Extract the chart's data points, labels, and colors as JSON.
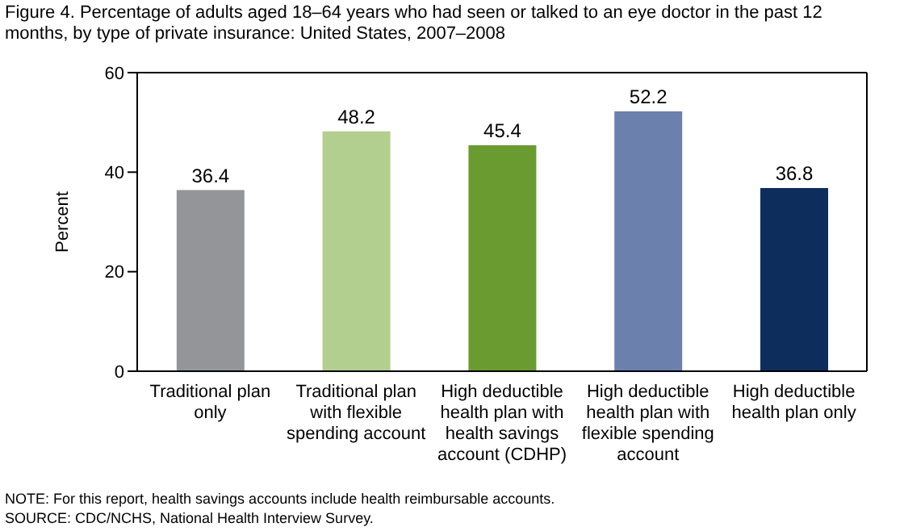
{
  "chart_data": {
    "type": "bar",
    "title": "Figure 4. Percentage of adults aged 18–64 years who had seen or talked to an eye doctor in the past 12 months, by type of private insurance: United States, 2007–2008",
    "ylabel": "Percent",
    "categories": [
      "Traditional plan only",
      "Traditional plan with flexible spending account",
      "High deductible health plan with health savings account (CDHP)",
      "High deductible health plan with flexible spending account",
      "High deductible health plan only"
    ],
    "values": [
      36.4,
      48.2,
      45.4,
      52.2,
      36.8
    ],
    "colors": [
      "#939598",
      "#b3cf8f",
      "#6a9b31",
      "#6b80ac",
      "#0d2d5d"
    ],
    "ylim": [
      0,
      60
    ],
    "yticks": [
      0,
      20,
      40,
      60
    ],
    "data_labels": true,
    "grid": false,
    "legend": false,
    "annotations": [
      "NOTE: For this report, health savings accounts include health reimbursable accounts.",
      "SOURCE: CDC/NCHS, National Health Interview Survey."
    ]
  }
}
